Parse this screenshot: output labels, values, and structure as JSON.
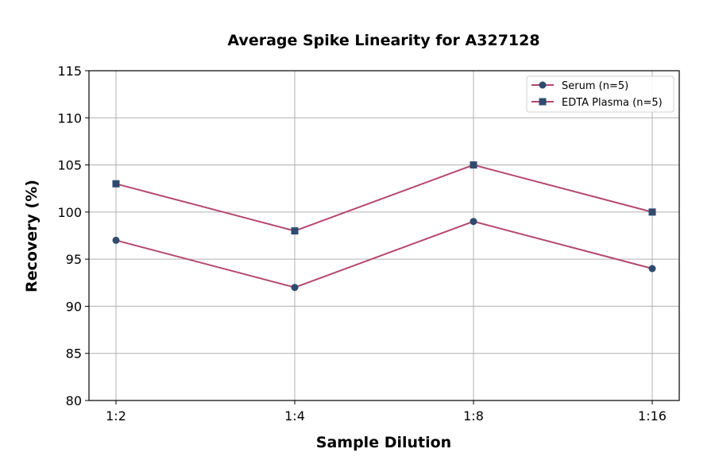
{
  "chart_data": {
    "type": "line",
    "title": "Average Spike Linearity for A327128",
    "xlabel": "Sample Dilution",
    "ylabel": "Recovery (%)",
    "categories": [
      "1:2",
      "1:4",
      "1:8",
      "1:16"
    ],
    "ylim": [
      80,
      115
    ],
    "yticks": [
      80,
      85,
      90,
      95,
      100,
      105,
      110,
      115
    ],
    "grid": true,
    "legend_position": "top-right",
    "series": [
      {
        "name": "Serum (n=5)",
        "values": [
          97,
          92,
          99,
          94
        ],
        "marker": "circle",
        "line_color": "#b5486e",
        "marker_color": "#2f4b6e"
      },
      {
        "name": "EDTA Plasma (n=5)",
        "values": [
          103,
          98,
          105,
          100
        ],
        "marker": "square",
        "line_color": "#b5486e",
        "marker_color": "#2f4b6e"
      }
    ]
  }
}
